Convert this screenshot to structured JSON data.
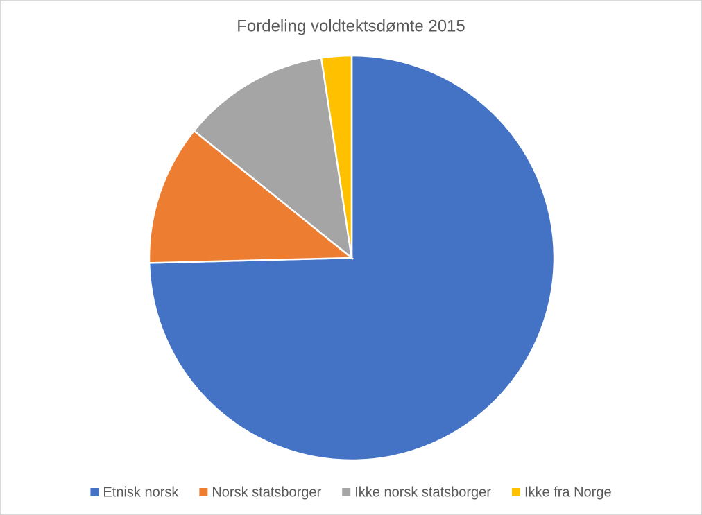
{
  "chart_data": {
    "type": "pie",
    "title": "Fordeling voldtektsdømte 2015",
    "categories": [
      "Etnisk norsk",
      "Norsk statsborger",
      "Ikke norsk statsborger",
      "Ikke fra Norge"
    ],
    "values": [
      74.6,
      11.2,
      11.8,
      2.4
    ],
    "colors": [
      "#4472c4",
      "#ed7d31",
      "#a5a5a5",
      "#ffc000"
    ],
    "legend": "bottom"
  }
}
